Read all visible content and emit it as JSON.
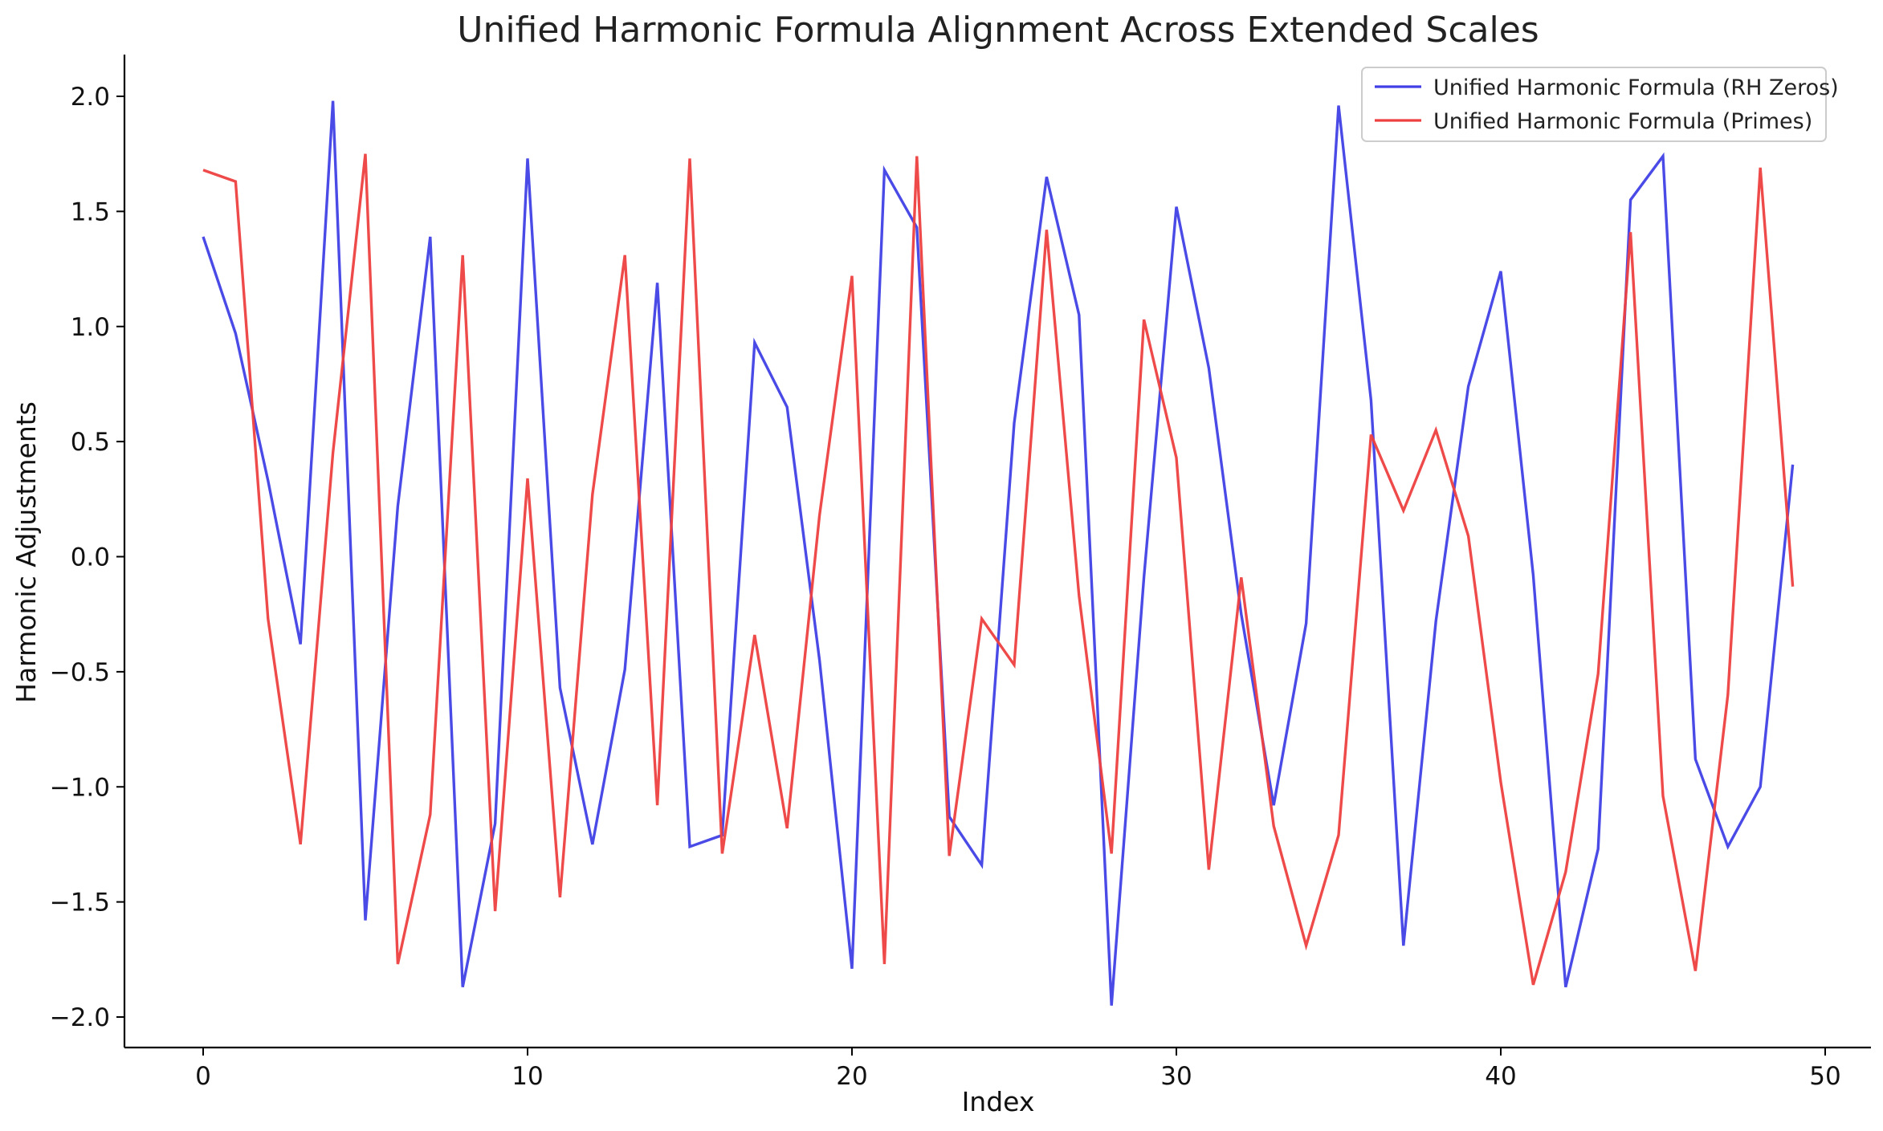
{
  "chart_data": {
    "type": "line",
    "title": "Unified Harmonic Formula Alignment Across Extended Scales",
    "xlabel": "Index",
    "ylabel": "Harmonic Adjustments",
    "xlim": [
      -2.5,
      51.5
    ],
    "ylim": [
      -2.15,
      2.18
    ],
    "x_ticks": [
      0,
      10,
      20,
      30,
      40,
      50
    ],
    "x_tick_labels": [
      "0",
      "10",
      "20",
      "30",
      "40",
      "50"
    ],
    "y_ticks": [
      2.0,
      1.5,
      1.0,
      0.5,
      0.0,
      -0.5,
      -1.0,
      -1.5,
      -2.0
    ],
    "y_tick_labels": [
      "2.0",
      "1.5",
      "1.0",
      "0.5",
      "0.0",
      "−0.5",
      "−1.0",
      "−1.5",
      "−2.0"
    ],
    "grid": false,
    "legend_position": "top-right",
    "x": [
      0,
      1,
      2,
      3,
      4,
      5,
      6,
      7,
      8,
      9,
      10,
      11,
      12,
      13,
      14,
      15,
      16,
      17,
      18,
      19,
      20,
      21,
      22,
      23,
      24,
      25,
      26,
      27,
      28,
      29,
      30,
      31,
      32,
      33,
      34,
      35,
      36,
      37,
      38,
      39,
      40,
      41,
      42,
      43,
      44,
      45,
      46,
      47,
      48,
      49
    ],
    "series": [
      {
        "name": "Unified Harmonic Formula (RH Zeros)",
        "color": "#4040e6",
        "values": [
          1.39,
          0.97,
          0.33,
          -0.38,
          1.98,
          -1.58,
          0.22,
          1.39,
          -1.87,
          -1.16,
          1.73,
          -0.57,
          -1.25,
          -0.49,
          1.19,
          -1.26,
          -1.21,
          0.93,
          0.65,
          -0.45,
          -1.79,
          1.68,
          1.43,
          -1.13,
          -1.34,
          0.58,
          1.65,
          1.05,
          -1.95,
          -0.09,
          1.52,
          0.82,
          -0.25,
          -1.08,
          -0.29,
          1.96,
          0.68,
          -1.69,
          -0.28,
          0.74,
          1.24,
          -0.08,
          -1.87,
          -1.27,
          1.55,
          1.74,
          -0.88,
          -1.26,
          -1.0,
          0.4
        ]
      },
      {
        "name": "Unified Harmonic Formula (Primes)",
        "color": "#ee4040",
        "values": [
          1.68,
          1.63,
          -0.27,
          -1.25,
          0.45,
          1.75,
          -1.77,
          -1.12,
          1.31,
          -1.54,
          0.34,
          -1.48,
          0.27,
          1.31,
          -1.08,
          1.73,
          -1.29,
          -0.34,
          -1.18,
          0.18,
          1.22,
          -1.77,
          1.74,
          -1.3,
          -0.27,
          -0.47,
          1.42,
          -0.17,
          -1.29,
          1.03,
          0.43,
          -1.36,
          -0.09,
          -1.17,
          -1.69,
          -1.21,
          0.53,
          0.2,
          0.55,
          0.09,
          -0.98,
          -1.86,
          -1.37,
          -0.51,
          1.41,
          -1.04,
          -1.8,
          -0.6,
          1.69,
          -0.13
        ]
      }
    ]
  }
}
